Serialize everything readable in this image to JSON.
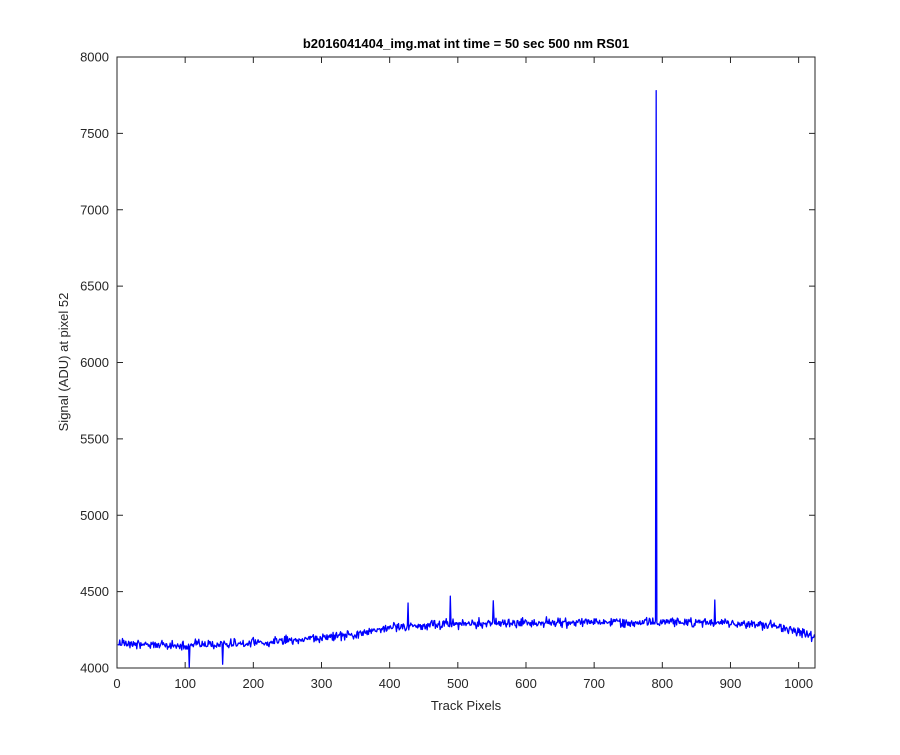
{
  "chart_data": {
    "type": "line",
    "title": "b2016041404_img.mat int time = 50 sec  500 nm RS01",
    "xlabel": "Track Pixels",
    "ylabel": "Signal (ADU) at pixel 52",
    "xlim": [
      0,
      1024
    ],
    "ylim": [
      4000,
      8000
    ],
    "x_ticks": [
      0,
      100,
      200,
      300,
      400,
      500,
      600,
      700,
      800,
      900,
      1000
    ],
    "y_ticks": [
      4000,
      4500,
      5000,
      5500,
      6000,
      6500,
      7000,
      7500,
      8000
    ],
    "x_tick_labels": [
      "0",
      "100",
      "200",
      "300",
      "400",
      "500",
      "600",
      "700",
      "800",
      "900",
      "1000"
    ],
    "y_tick_labels": [
      "4000",
      "4500",
      "5000",
      "5500",
      "6000",
      "6500",
      "7000",
      "7500",
      "8000"
    ],
    "grid": false,
    "box": true,
    "series": [
      {
        "color": "#0000ff",
        "n_points": 1024,
        "baseline_trend": [
          {
            "x": 0,
            "y": 4160
          },
          {
            "x": 100,
            "y": 4150
          },
          {
            "x": 200,
            "y": 4165
          },
          {
            "x": 300,
            "y": 4195
          },
          {
            "x": 350,
            "y": 4220
          },
          {
            "x": 400,
            "y": 4265
          },
          {
            "x": 500,
            "y": 4290
          },
          {
            "x": 600,
            "y": 4295
          },
          {
            "x": 700,
            "y": 4300
          },
          {
            "x": 800,
            "y": 4300
          },
          {
            "x": 900,
            "y": 4295
          },
          {
            "x": 960,
            "y": 4280
          },
          {
            "x": 1000,
            "y": 4240
          },
          {
            "x": 1024,
            "y": 4200
          }
        ],
        "noise_amplitude": 40,
        "spikes": [
          {
            "x": 791,
            "y": 7780
          },
          {
            "x": 489,
            "y": 4470
          },
          {
            "x": 427,
            "y": 4425
          },
          {
            "x": 552,
            "y": 4440
          },
          {
            "x": 877,
            "y": 4445
          },
          {
            "x": 106,
            "y": 4005
          },
          {
            "x": 155,
            "y": 4025
          }
        ]
      }
    ]
  }
}
